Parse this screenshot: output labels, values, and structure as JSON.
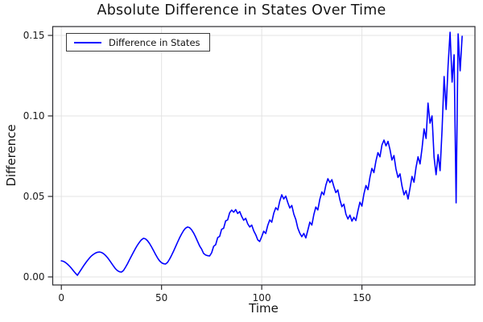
{
  "chart_data": {
    "type": "line",
    "title": "Absolute Difference in States Over Time",
    "xlabel": "Time",
    "ylabel": "Difference",
    "grid": true,
    "legend_position": "top-left",
    "line_color": "#0000ff",
    "axis_color": "#2a2a2e",
    "grid_color": "#e3e3e3",
    "xlim": [
      -4.3,
      206.4
    ],
    "ylim": [
      -0.005,
      0.1555
    ],
    "xticks": [
      0,
      50,
      100,
      150
    ],
    "xtick_labels": [
      "0",
      "50",
      "100",
      "150"
    ],
    "yticks": [
      0.0,
      0.05,
      0.1,
      0.15
    ],
    "ytick_labels": [
      "0.00",
      "0.05",
      "0.10",
      "0.15"
    ],
    "series": [
      {
        "name": "Difference in States",
        "color": "#0000ff",
        "x_start": 0,
        "x_step": 1,
        "values": [
          0.01,
          0.0097,
          0.009,
          0.008,
          0.0068,
          0.0054,
          0.0039,
          0.0024,
          0.001,
          0.0029,
          0.0048,
          0.0067,
          0.0085,
          0.0102,
          0.0117,
          0.013,
          0.014,
          0.0148,
          0.0153,
          0.0155,
          0.0152,
          0.0145,
          0.0134,
          0.012,
          0.0104,
          0.0086,
          0.0068,
          0.0051,
          0.0039,
          0.0032,
          0.003,
          0.004,
          0.006,
          0.0082,
          0.0106,
          0.013,
          0.0154,
          0.0177,
          0.0198,
          0.0216,
          0.0231,
          0.024,
          0.0236,
          0.0225,
          0.0208,
          0.0187,
          0.0164,
          0.014,
          0.0118,
          0.01,
          0.0088,
          0.0082,
          0.008,
          0.009,
          0.011,
          0.0134,
          0.016,
          0.0188,
          0.0216,
          0.0243,
          0.0267,
          0.0288,
          0.0303,
          0.031,
          0.0306,
          0.0293,
          0.0273,
          0.0248,
          0.022,
          0.0192,
          0.0172,
          0.0146,
          0.0136,
          0.0132,
          0.013,
          0.015,
          0.019,
          0.02,
          0.0244,
          0.0252,
          0.0296,
          0.0302,
          0.0348,
          0.0354,
          0.0399,
          0.0415,
          0.0402,
          0.0418,
          0.0394,
          0.0406,
          0.0376,
          0.0352,
          0.0364,
          0.033,
          0.031,
          0.0322,
          0.0286,
          0.0262,
          0.023,
          0.022,
          0.025,
          0.0284,
          0.027,
          0.032,
          0.0354,
          0.034,
          0.0396,
          0.043,
          0.0416,
          0.047,
          0.051,
          0.0484,
          0.0502,
          0.0462,
          0.0428,
          0.0444,
          0.039,
          0.0356,
          0.0304,
          0.0272,
          0.025,
          0.027,
          0.0242,
          0.029,
          0.034,
          0.0322,
          0.0388,
          0.0434,
          0.0416,
          0.0482,
          0.0528,
          0.051,
          0.057,
          0.061,
          0.0586,
          0.0604,
          0.056,
          0.0524,
          0.054,
          0.048,
          0.0436,
          0.0452,
          0.039,
          0.036,
          0.0384,
          0.0346,
          0.037,
          0.035,
          0.041,
          0.0464,
          0.044,
          0.0516,
          0.0568,
          0.0542,
          0.062,
          0.0674,
          0.0648,
          0.072,
          0.0772,
          0.0746,
          0.082,
          0.085,
          0.0814,
          0.0842,
          0.079,
          0.0726,
          0.0754,
          0.067,
          0.0618,
          0.064,
          0.0564,
          0.051,
          0.0536,
          0.0484,
          0.055,
          0.0624,
          0.0588,
          0.068,
          0.0746,
          0.0702,
          0.08,
          0.092,
          0.086,
          0.108,
          0.0955,
          0.1,
          0.0745,
          0.0635,
          0.076,
          0.066,
          0.092,
          0.1245,
          0.104,
          0.131,
          0.152,
          0.121,
          0.138,
          0.046,
          0.151,
          0.128,
          0.1495
        ]
      }
    ]
  }
}
